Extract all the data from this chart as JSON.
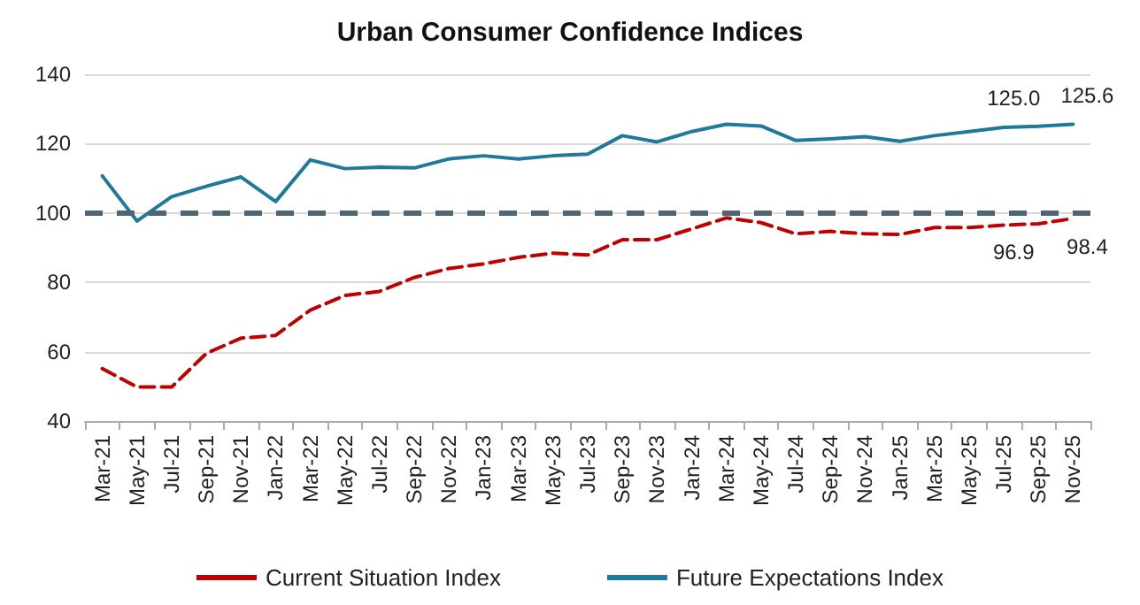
{
  "chart_data": {
    "type": "line",
    "title": "Urban Consumer Confidence Indices",
    "categories": [
      "Mar-21",
      "May-21",
      "Jul-21",
      "Sep-21",
      "Nov-21",
      "Jan-22",
      "Mar-22",
      "May-22",
      "Jul-22",
      "Sep-22",
      "Nov-22",
      "Jan-23",
      "Mar-23",
      "May-23",
      "Jul-23",
      "Sep-23",
      "Nov-23",
      "Jan-24",
      "Mar-24",
      "May-24",
      "Jul-24",
      "Sep-24",
      "Nov-24",
      "Jan-25",
      "Mar-25",
      "May-25",
      "Jul-25",
      "Sep-25",
      "Nov-25"
    ],
    "series": [
      {
        "name": "Current Situation Index",
        "color": "#c00000",
        "line_style": "dashed",
        "values": [
          55.1,
          49.8,
          49.8,
          59.5,
          63.9,
          64.7,
          72,
          76.2,
          77.4,
          81.4,
          84,
          85.3,
          87.2,
          88.4,
          87.9,
          92.3,
          92.3,
          95.4,
          98.6,
          97.2,
          94,
          94.7,
          94,
          93.8,
          95.8,
          95.8,
          96.5,
          96.9,
          98.4
        ],
        "value_labels": [
          null,
          null,
          null,
          null,
          null,
          null,
          null,
          null,
          null,
          null,
          null,
          null,
          null,
          null,
          null,
          null,
          null,
          null,
          null,
          null,
          null,
          null,
          null,
          null,
          null,
          null,
          null,
          "96.9",
          "98.4"
        ]
      },
      {
        "name": "Future Expectations Index",
        "color": "#1f7a99",
        "line_style": "solid",
        "values": [
          110.7,
          97.7,
          104.7,
          107.7,
          110.4,
          103.3,
          115.3,
          112.8,
          113.2,
          113,
          115.6,
          116.5,
          115.6,
          116.5,
          117,
          122.3,
          120.5,
          123.5,
          125.6,
          125.1,
          120.9,
          121.4,
          122,
          120.7,
          122.3,
          123.5,
          124.7,
          125.0,
          125.6
        ],
        "value_labels": [
          null,
          null,
          null,
          null,
          null,
          null,
          null,
          null,
          null,
          null,
          null,
          null,
          null,
          null,
          null,
          null,
          null,
          null,
          null,
          null,
          null,
          null,
          null,
          null,
          null,
          null,
          null,
          "125.0",
          "125.6"
        ]
      }
    ],
    "ylim": [
      40,
      140
    ],
    "yticks": [
      40,
      60,
      80,
      100,
      120,
      140
    ],
    "grid": "y",
    "legend": "bottom",
    "marker": "none",
    "ref_lines": [
      {
        "axis": "y",
        "value": 100,
        "color": "#4f6573",
        "line_style": "dashed"
      }
    ]
  }
}
